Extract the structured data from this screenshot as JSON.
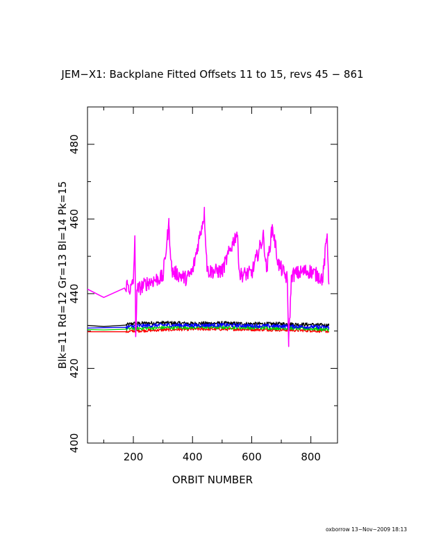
{
  "chart_data": {
    "type": "line",
    "title": "JEM−X1: Backplane Fitted Offsets 11 to 15, revs 45 − 861",
    "xlabel": "ORBIT NUMBER",
    "ylabel": "Blk=11 Rd=12 Gr=13 Bl=14 Pk=15",
    "xlim": [
      45,
      890
    ],
    "ylim": [
      400,
      490
    ],
    "x_ticks_major": [
      200,
      400,
      600,
      800
    ],
    "y_ticks_major": [
      400,
      420,
      440,
      460,
      480
    ],
    "grid": false,
    "series": [
      {
        "name": "Blk=11",
        "color": "#000000",
        "base": 432.0,
        "noise": 0.5,
        "points": [
          [
            45,
            431.5
          ],
          [
            100,
            431.2
          ],
          [
            175,
            431.6
          ],
          [
            200,
            432.0
          ],
          [
            300,
            432.2
          ],
          [
            400,
            432.0
          ],
          [
            500,
            432.1
          ],
          [
            600,
            431.9
          ],
          [
            700,
            431.9
          ],
          [
            800,
            431.7
          ],
          [
            861,
            431.5
          ]
        ]
      },
      {
        "name": "Rd=12",
        "color": "#ff0000",
        "base": 430.0,
        "noise": 0.4,
        "points": [
          [
            45,
            429.8
          ],
          [
            100,
            429.8
          ],
          [
            175,
            429.8
          ],
          [
            200,
            430.0
          ],
          [
            300,
            430.3
          ],
          [
            400,
            430.5
          ],
          [
            500,
            430.5
          ],
          [
            600,
            430.4
          ],
          [
            700,
            430.3
          ],
          [
            800,
            430.1
          ],
          [
            861,
            429.9
          ]
        ]
      },
      {
        "name": "Gr=13",
        "color": "#00cc00",
        "base": 430.5,
        "noise": 0.5,
        "points": [
          [
            45,
            430.4
          ],
          [
            100,
            430.3
          ],
          [
            175,
            430.5
          ],
          [
            200,
            430.7
          ],
          [
            300,
            430.9
          ],
          [
            400,
            431.0
          ],
          [
            500,
            431.0
          ],
          [
            600,
            430.9
          ],
          [
            700,
            430.8
          ],
          [
            800,
            430.6
          ],
          [
            861,
            430.4
          ]
        ]
      },
      {
        "name": "Bl=14",
        "color": "#0000ff",
        "base": 431.2,
        "noise": 0.5,
        "points": [
          [
            45,
            430.8
          ],
          [
            100,
            430.9
          ],
          [
            175,
            431.0
          ],
          [
            200,
            431.3
          ],
          [
            300,
            431.6
          ],
          [
            400,
            431.5
          ],
          [
            500,
            431.6
          ],
          [
            600,
            431.4
          ],
          [
            700,
            431.3
          ],
          [
            800,
            431.1
          ],
          [
            861,
            431.0
          ]
        ]
      },
      {
        "name": "Pk=15",
        "color": "#ff00ff",
        "base": 445.0,
        "noise": 2.0,
        "points": [
          [
            45,
            441.2
          ],
          [
            100,
            439.0
          ],
          [
            170,
            441.5
          ],
          [
            180,
            442.5
          ],
          [
            190,
            441.0
          ],
          [
            200,
            443.0
          ],
          [
            205,
            455.5
          ],
          [
            208,
            428.5
          ],
          [
            212,
            441.0
          ],
          [
            250,
            443.0
          ],
          [
            300,
            444.5
          ],
          [
            320,
            458.5
          ],
          [
            330,
            446.0
          ],
          [
            380,
            444.0
          ],
          [
            400,
            446.0
          ],
          [
            440,
            461.5
          ],
          [
            450,
            446.0
          ],
          [
            500,
            446.0
          ],
          [
            550,
            456.5
          ],
          [
            560,
            445.0
          ],
          [
            600,
            445.5
          ],
          [
            640,
            455.5
          ],
          [
            650,
            446.0
          ],
          [
            670,
            458.0
          ],
          [
            690,
            448.0
          ],
          [
            720,
            444.0
          ],
          [
            725,
            427.5
          ],
          [
            735,
            445.0
          ],
          [
            780,
            446.0
          ],
          [
            800,
            446.0
          ],
          [
            840,
            444.0
          ],
          [
            855,
            456.0
          ],
          [
            861,
            442.5
          ]
        ]
      }
    ]
  },
  "footer": "oxborrow 13−Nov−2009 18:13"
}
